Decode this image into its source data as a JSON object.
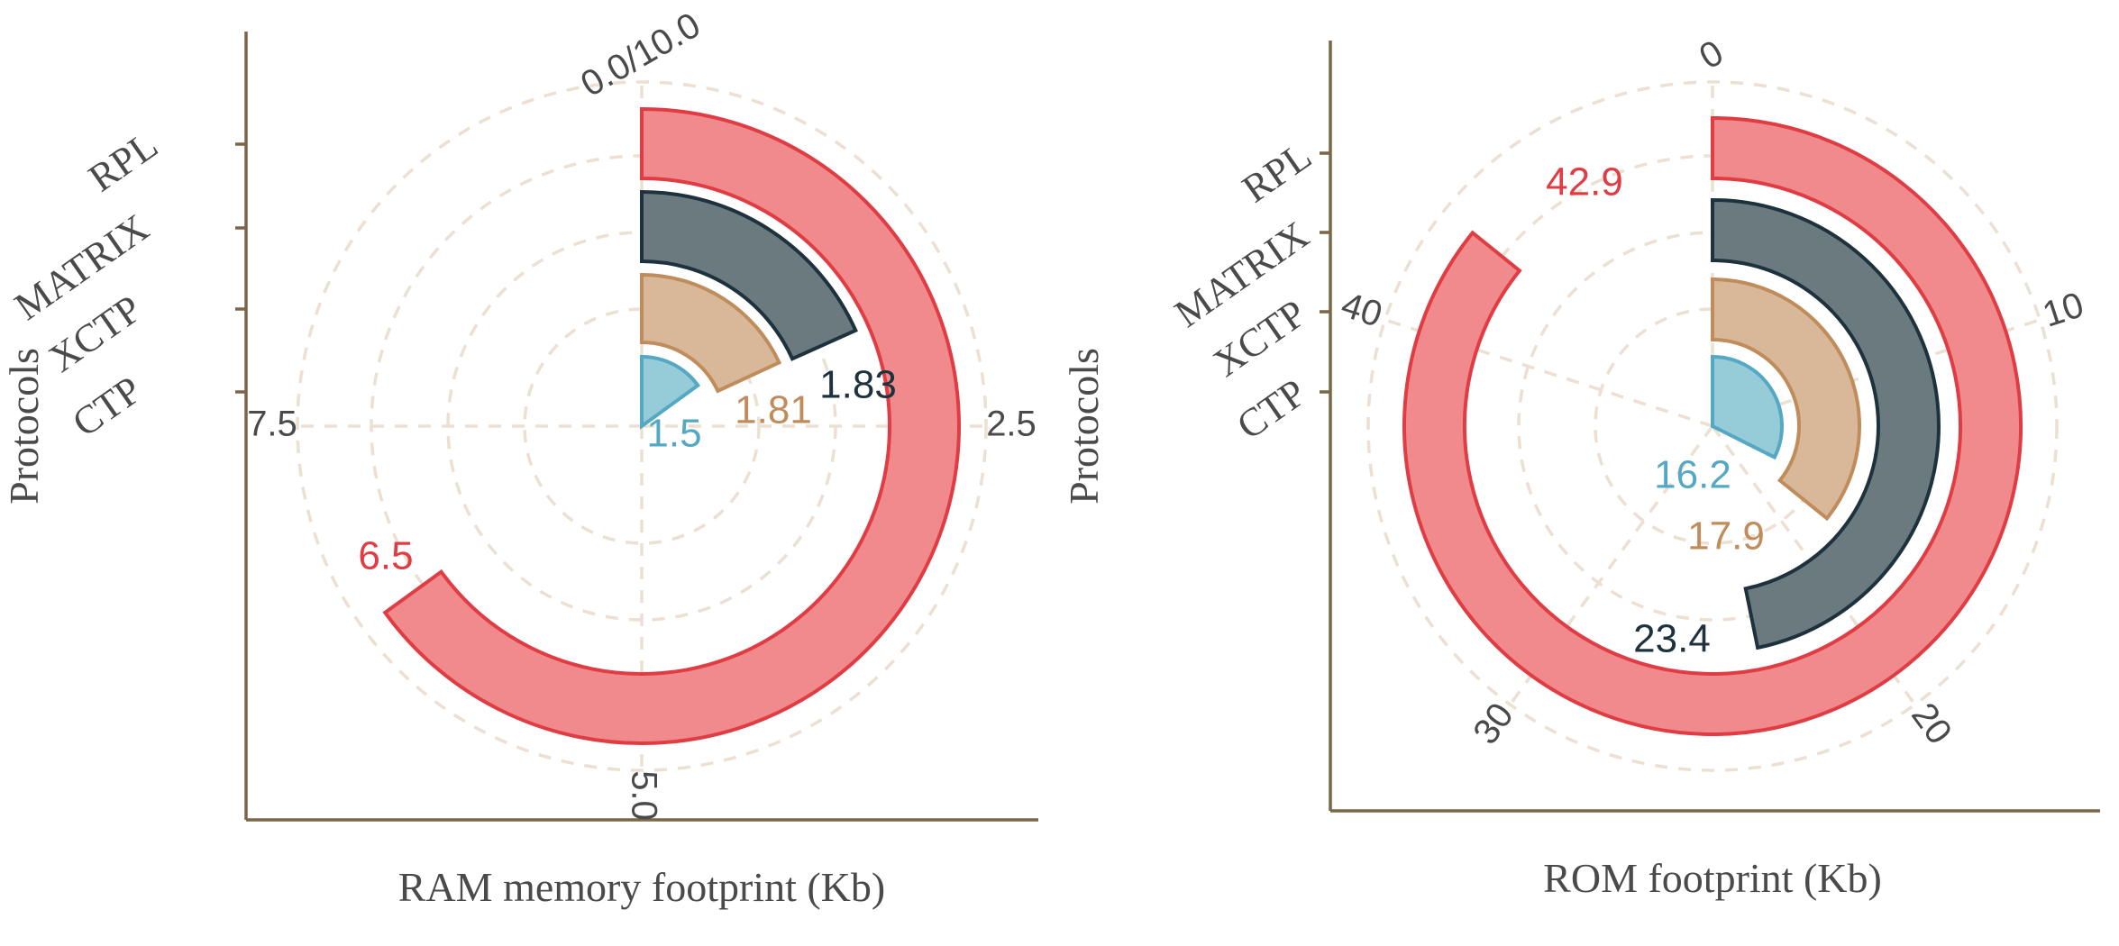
{
  "chart_data": [
    {
      "type": "radial-bar",
      "xlabel": "RAM memory footprint (Kb)",
      "ylabel": "Protocols",
      "angle_range": [
        0,
        10
      ],
      "angle_ticks": [
        "0.0/10.0",
        "2.5",
        "5.0",
        "7.5"
      ],
      "categories": [
        "RPL",
        "MATRIX",
        "XCTP",
        "CTP"
      ],
      "values": [
        6.5,
        1.83,
        1.81,
        1.5
      ],
      "value_labels": [
        "6.5",
        "1.83",
        "1.81",
        "1.5"
      ],
      "grid": true
    },
    {
      "type": "radial-bar",
      "xlabel": "ROM footprint (Kb)",
      "ylabel": "Protocols",
      "angle_range": [
        0,
        50
      ],
      "angle_ticks": [
        "0",
        "10",
        "20",
        "30",
        "40"
      ],
      "categories": [
        "RPL",
        "MATRIX",
        "XCTP",
        "CTP"
      ],
      "values": [
        42.9,
        23.4,
        17.9,
        16.2
      ],
      "value_labels": [
        "42.9",
        "23.4",
        "17.9",
        "16.2"
      ],
      "grid": true
    }
  ],
  "colors": {
    "RPL": {
      "fill": "#f08a8c",
      "stroke": "#e03c44",
      "label": "#e03c44"
    },
    "MATRIX": {
      "fill": "#6b7a7e",
      "stroke": "#1e323e",
      "label": "#1e323e"
    },
    "XCTP": {
      "fill": "#d8b898",
      "stroke": "#c08c5c",
      "label": "#c08c5c"
    },
    "CTP": {
      "fill": "#96ccd8",
      "stroke": "#55a8c4",
      "label": "#55a8c4"
    }
  }
}
